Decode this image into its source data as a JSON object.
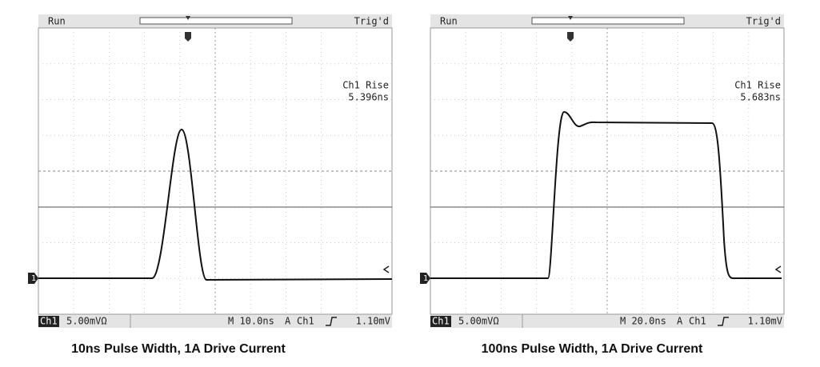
{
  "panels": [
    {
      "status": "Run",
      "trigger_status": "Trig'd",
      "measurement": {
        "label": "Ch1 Rise",
        "value": "5.396ns"
      },
      "channel_marker": "1",
      "channel": "Ch1",
      "scale": "5.00mVΩ",
      "timebase": "M 10.0ns",
      "trigger": {
        "source": "A",
        "channel": "Ch1",
        "level": "1.10mV"
      },
      "caption": "10ns Pulse Width, 1A Drive Current"
    },
    {
      "status": "Run",
      "trigger_status": "Trig'd",
      "measurement": {
        "label": "Ch1 Rise",
        "value": "5.683ns"
      },
      "channel_marker": "1",
      "channel": "Ch1",
      "scale": "5.00mVΩ",
      "timebase": "M 20.0ns",
      "trigger": {
        "source": "A",
        "channel": "Ch1",
        "level": "1.10mV"
      },
      "caption": "100ns Pulse Width, 1A Drive Current"
    }
  ]
}
